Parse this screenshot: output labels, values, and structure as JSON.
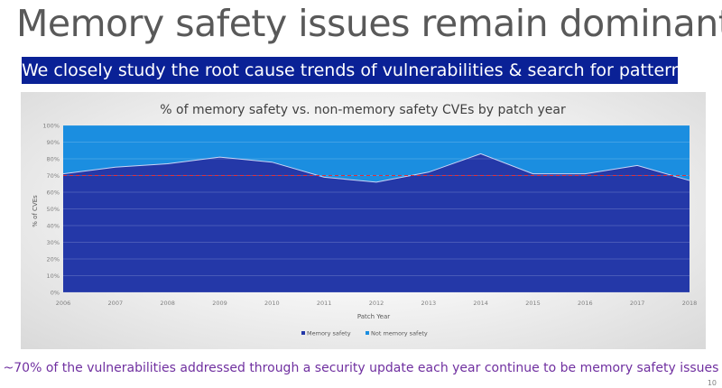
{
  "slide": {
    "title": "Memory safety issues remain dominant",
    "banner": "We closely study the root cause trends of vulnerabilities & search for patterns",
    "footer": "~70% of the vulnerabilities addressed through a security update each year continue to be memory safety issues",
    "page_number": "10"
  },
  "colors": {
    "memory_safety": "#2438a8",
    "not_memory_safety": "#1b8ee0",
    "banner": "#0a2196",
    "reference_line": "#e0303a",
    "footer_text": "#7030a0"
  },
  "chart_data": {
    "type": "area",
    "title": "% of memory safety vs. non-memory safety CVEs by patch year",
    "xlabel": "Patch Year",
    "ylabel": "% of CVEs",
    "x": [
      "2006",
      "2007",
      "2008",
      "2009",
      "2010",
      "2011",
      "2012",
      "2013",
      "2014",
      "2015",
      "2016",
      "2017",
      "2018"
    ],
    "yticks": [
      "0%",
      "10%",
      "20%",
      "30%",
      "40%",
      "50%",
      "60%",
      "70%",
      "80%",
      "90%",
      "100%"
    ],
    "ylim": [
      0,
      100
    ],
    "stacked": true,
    "series": [
      {
        "name": "Memory safety",
        "values": [
          71,
          75,
          77,
          81,
          78,
          69,
          66,
          72,
          83,
          71,
          71,
          76,
          67
        ]
      },
      {
        "name": "Not memory safety",
        "values": [
          29,
          25,
          23,
          19,
          22,
          31,
          34,
          28,
          17,
          29,
          29,
          24,
          33
        ]
      }
    ],
    "reference_line": {
      "y": 70,
      "style": "dashed"
    },
    "legend": "bottom",
    "grid": true
  }
}
